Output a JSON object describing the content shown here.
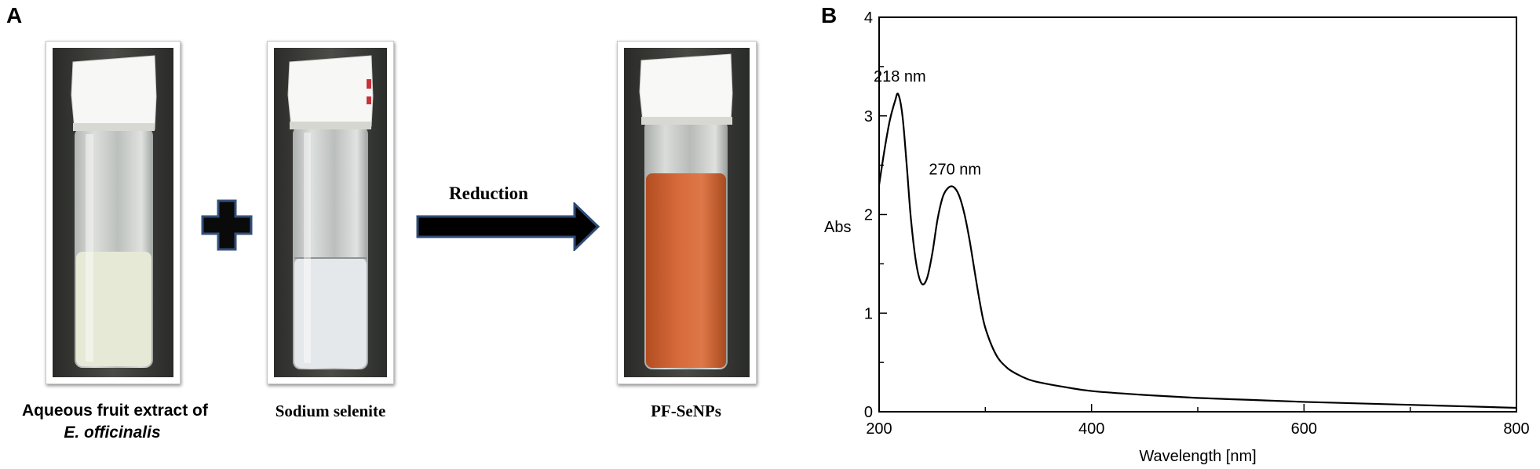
{
  "panel_a": {
    "letter": "A",
    "vial_1": {
      "caption_line1": "Aqueous fruit extract of",
      "caption_line2": "E. officinalis",
      "liquid_color": "#e6e9d6"
    },
    "vial_2": {
      "caption": "Sodium selenite",
      "liquid_color": "#e4e8ea"
    },
    "vial_3": {
      "caption": "PF-SeNPs",
      "liquid_color": "#d2673a"
    },
    "operator": "+",
    "arrow_label": "Reduction",
    "colors": {
      "plus_fill": "#0a0a0a",
      "plus_outline": "#33507a",
      "arrow_fill": "#000000",
      "arrow_outline": "#2f4a72"
    }
  },
  "panel_b": {
    "letter": "B",
    "chart_data": {
      "type": "line",
      "xlabel": "Wavelength [nm]",
      "ylabel": "Abs",
      "xlim": [
        200,
        800
      ],
      "ylim": [
        0,
        4
      ],
      "x_ticks": [
        200,
        400,
        600,
        800
      ],
      "y_ticks": [
        0,
        1,
        2,
        3,
        4
      ],
      "grid": false,
      "series": [
        {
          "x": [
            200,
            205,
            210,
            215,
            218,
            222,
            226,
            230,
            235,
            240,
            245,
            250,
            255,
            260,
            265,
            270,
            275,
            280,
            285,
            290,
            295,
            300,
            310,
            320,
            330,
            340,
            350,
            375,
            400,
            450,
            500,
            550,
            600,
            650,
            700,
            750,
            800
          ],
          "y": [
            2.3,
            2.65,
            2.95,
            3.15,
            3.22,
            3.0,
            2.5,
            1.95,
            1.5,
            1.3,
            1.35,
            1.6,
            1.95,
            2.18,
            2.27,
            2.28,
            2.2,
            2.02,
            1.75,
            1.42,
            1.1,
            0.85,
            0.58,
            0.45,
            0.38,
            0.33,
            0.3,
            0.25,
            0.21,
            0.17,
            0.14,
            0.12,
            0.1,
            0.085,
            0.07,
            0.055,
            0.04
          ]
        }
      ],
      "annotations": [
        {
          "text": "218 nm",
          "x": 218,
          "y": 3.22
        },
        {
          "text": "270 nm",
          "x": 270,
          "y": 2.28
        }
      ]
    }
  }
}
